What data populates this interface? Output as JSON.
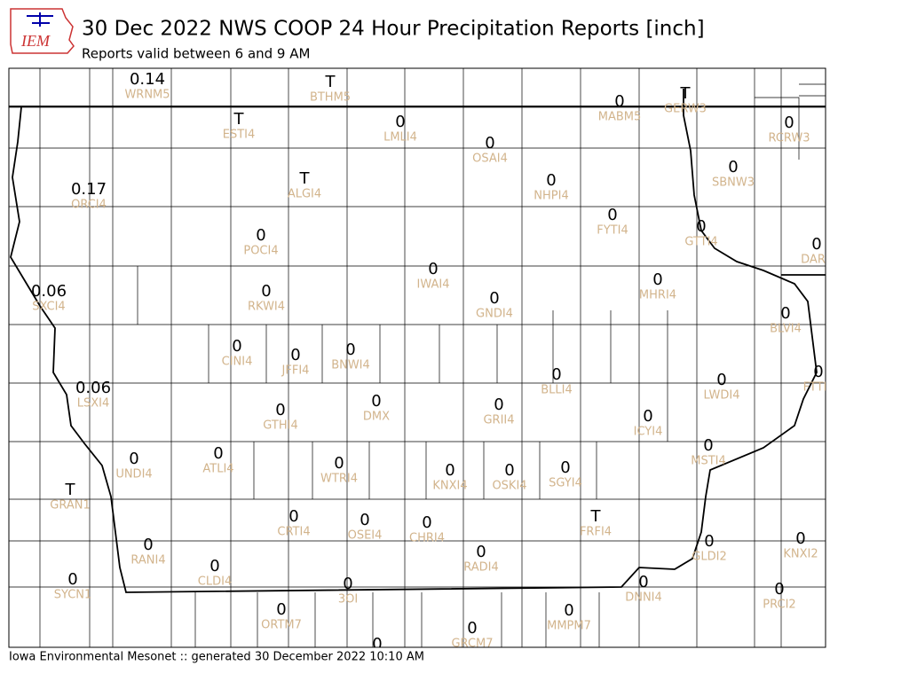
{
  "header": {
    "logo_text": "IEM",
    "title": "30 Dec 2022 NWS COOP 24 Hour Precipitation Reports [inch]",
    "subtitle": "Reports valid between 6 and 9 AM"
  },
  "footer": "Iowa Environmental Mesonet :: generated 30 December 2022 10:10 AM",
  "stations": [
    {
      "value": "0.14",
      "id": "WRNM5"
    },
    {
      "value": "T",
      "id": "BTHM5"
    },
    {
      "value": "0",
      "id": "MABM5"
    },
    {
      "value": "T",
      "id": "GERW3"
    },
    {
      "value": "0",
      "id": "RCRW3"
    },
    {
      "value": "T",
      "id": "ESTI4"
    },
    {
      "value": "0",
      "id": "LMLI4"
    },
    {
      "value": "0",
      "id": "OSAI4"
    },
    {
      "value": "0",
      "id": "SBNW3"
    },
    {
      "value": "0",
      "id": "NHPI4"
    },
    {
      "value": "T",
      "id": "ALGI4"
    },
    {
      "value": "0.17",
      "id": "ORCI4"
    },
    {
      "value": "0",
      "id": "FYTI4"
    },
    {
      "value": "0",
      "id": "GTTI4"
    },
    {
      "value": "0",
      "id": "DAR"
    },
    {
      "value": "0",
      "id": "POCI4"
    },
    {
      "value": "0",
      "id": "IWAI4"
    },
    {
      "value": "0",
      "id": "MHRI4"
    },
    {
      "value": "0.06",
      "id": "SXCI4"
    },
    {
      "value": "0",
      "id": "RKWI4"
    },
    {
      "value": "0",
      "id": "GNDI4"
    },
    {
      "value": "0",
      "id": "BLVI4"
    },
    {
      "value": "0",
      "id": "CINI4"
    },
    {
      "value": "0",
      "id": "JFFI4"
    },
    {
      "value": "0",
      "id": "BNWI4"
    },
    {
      "value": "0",
      "id": "FTTI"
    },
    {
      "value": "0",
      "id": "BLLI4"
    },
    {
      "value": "0",
      "id": "LWDI4"
    },
    {
      "value": "0.06",
      "id": "LSXI4"
    },
    {
      "value": "0",
      "id": "DMX"
    },
    {
      "value": "0",
      "id": "GTHI4"
    },
    {
      "value": "0",
      "id": "GRII4"
    },
    {
      "value": "0",
      "id": "ICYI4"
    },
    {
      "value": "0",
      "id": "MSTI4"
    },
    {
      "value": "0",
      "id": "UNDI4"
    },
    {
      "value": "0",
      "id": "ATLI4"
    },
    {
      "value": "0",
      "id": "WTRI4"
    },
    {
      "value": "0",
      "id": "KNXI4"
    },
    {
      "value": "0",
      "id": "OSKI4"
    },
    {
      "value": "0",
      "id": "SGYI4"
    },
    {
      "value": "T",
      "id": "GRAN1"
    },
    {
      "value": "0",
      "id": "CRTI4"
    },
    {
      "value": "0",
      "id": "OSEI4"
    },
    {
      "value": "0",
      "id": "CHRI4"
    },
    {
      "value": "T",
      "id": "FRFI4"
    },
    {
      "value": "0",
      "id": "RANI4"
    },
    {
      "value": "0",
      "id": "GLDI2"
    },
    {
      "value": "0",
      "id": "KNXI2"
    },
    {
      "value": "0",
      "id": "RADI4"
    },
    {
      "value": "0",
      "id": "CLDI4"
    },
    {
      "value": "0",
      "id": "SYCN1"
    },
    {
      "value": "0",
      "id": "3OI"
    },
    {
      "value": "0",
      "id": "DNNI4"
    },
    {
      "value": "0",
      "id": "PRCI2"
    },
    {
      "value": "0",
      "id": "ORTM7"
    },
    {
      "value": "0",
      "id": "MMPM7"
    },
    {
      "value": "0",
      "id": "GRCM7"
    },
    {
      "value": "0"
    }
  ]
}
